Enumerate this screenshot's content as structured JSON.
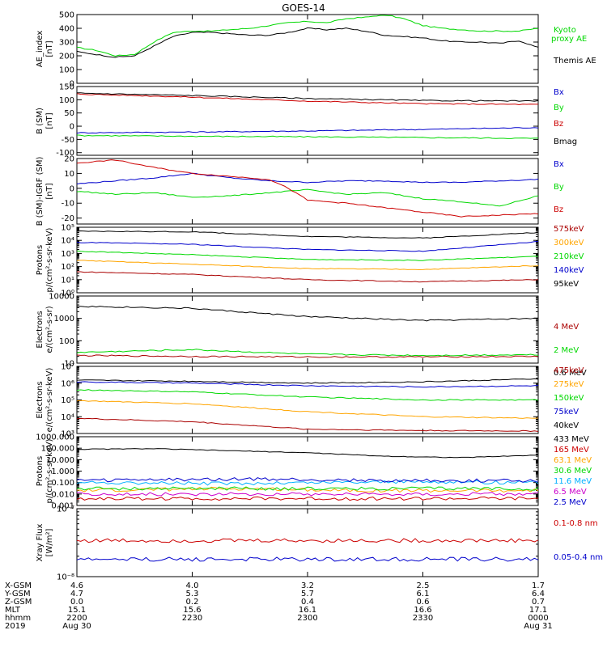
{
  "title": "GOES-14",
  "chart_data": [
    {
      "type": "line",
      "ylabel": [
        "AE_index",
        "[nT]"
      ],
      "ylim": [
        0,
        500
      ],
      "scale": "linear",
      "yticks": [
        0,
        100,
        200,
        300,
        400,
        500
      ],
      "yticklabels": [
        "0",
        "100",
        "200",
        "300",
        "400",
        "500"
      ],
      "series": [
        {
          "name": "Kyoto",
          "name2": "proxy AE",
          "color": "#00d800",
          "x": [
            0,
            5,
            10,
            15,
            20,
            25,
            30,
            35,
            40,
            45,
            50,
            55,
            60,
            65,
            70,
            75,
            80,
            85,
            90,
            95,
            100,
            105,
            110,
            115,
            120
          ],
          "values": [
            260,
            240,
            200,
            210,
            300,
            370,
            380,
            380,
            390,
            400,
            420,
            440,
            450,
            440,
            470,
            480,
            500,
            470,
            420,
            400,
            390,
            380,
            380,
            380,
            400
          ]
        },
        {
          "name": "Themis AE",
          "color": "#000000",
          "x": [
            0,
            5,
            10,
            15,
            20,
            25,
            30,
            35,
            40,
            45,
            50,
            55,
            60,
            65,
            70,
            75,
            80,
            85,
            90,
            95,
            100,
            105,
            110,
            115,
            120
          ],
          "values": [
            230,
            210,
            190,
            200,
            270,
            340,
            370,
            370,
            360,
            350,
            350,
            370,
            400,
            390,
            400,
            380,
            350,
            340,
            330,
            310,
            300,
            300,
            290,
            310,
            260
          ]
        }
      ]
    },
    {
      "type": "line",
      "ylabel": [
        "B (SM)",
        "[nT]"
      ],
      "ylim": [
        -110,
        150
      ],
      "scale": "linear",
      "yticks": [
        -100,
        -50,
        0,
        50,
        100,
        150
      ],
      "yticklabels": [
        "-100",
        "-50",
        "0",
        "50",
        "100",
        "150"
      ],
      "series": [
        {
          "name": "Bx",
          "color": "#0000cc",
          "x": [
            0,
            30,
            60,
            90,
            120
          ],
          "values": [
            -25,
            -22,
            -18,
            -12,
            -5
          ]
        },
        {
          "name": "By",
          "color": "#00d800",
          "x": [
            0,
            30,
            60,
            90,
            120
          ],
          "values": [
            -35,
            -38,
            -40,
            -43,
            -46
          ]
        },
        {
          "name": "Bz",
          "color": "#cc0000",
          "x": [
            0,
            30,
            60,
            90,
            120
          ],
          "values": [
            122,
            110,
            95,
            85,
            82
          ]
        },
        {
          "name": "Bmag",
          "color": "#000000",
          "x": [
            0,
            30,
            60,
            90,
            120
          ],
          "values": [
            125,
            116,
            105,
            97,
            95
          ]
        }
      ]
    },
    {
      "type": "line",
      "ylabel": [
        "B (SM)-IGRF (SM)",
        "[nT]"
      ],
      "ylim": [
        -24,
        20
      ],
      "scale": "linear",
      "yticks": [
        -20,
        -10,
        0,
        10,
        20
      ],
      "yticklabels": [
        "-20",
        "-10",
        "0",
        "10",
        "20"
      ],
      "series": [
        {
          "name": "Bx",
          "color": "#0000cc",
          "x": [
            0,
            10,
            20,
            30,
            40,
            50,
            60,
            70,
            80,
            90,
            100,
            110,
            120
          ],
          "values": [
            3,
            5,
            7,
            10,
            7,
            5,
            4,
            5,
            5,
            4,
            4,
            5,
            6
          ]
        },
        {
          "name": "By",
          "color": "#00d800",
          "x": [
            0,
            10,
            20,
            30,
            40,
            50,
            60,
            70,
            80,
            90,
            100,
            110,
            120
          ],
          "values": [
            -2,
            -4,
            -3,
            -6,
            -5,
            -3,
            -1,
            -4,
            -3,
            -7,
            -9,
            -12,
            -5
          ]
        },
        {
          "name": "Bz",
          "color": "#cc0000",
          "x": [
            0,
            10,
            20,
            30,
            40,
            50,
            55,
            60,
            70,
            80,
            90,
            100,
            110,
            120
          ],
          "values": [
            17,
            19,
            14,
            10,
            8,
            6,
            0,
            -8,
            -10,
            -13,
            -16,
            -19,
            -18,
            -17
          ]
        }
      ]
    },
    {
      "type": "line",
      "ylabel": [
        "Protons",
        "p/(cm²-s-sr-keV)"
      ],
      "ylim": [
        1,
        100000
      ],
      "scale": "log",
      "yticks": [
        1,
        10,
        100,
        1000,
        10000,
        100000
      ],
      "yticklabels": [
        "10⁰",
        "10¹",
        "10²",
        "10³",
        "10⁴",
        "10⁵"
      ],
      "series": [
        {
          "name": "575keV",
          "color": "#aa0000",
          "x": [
            0,
            30,
            60,
            90,
            120
          ],
          "values": [
            40,
            25,
            10,
            7,
            10
          ]
        },
        {
          "name": "300keV",
          "color": "#ffa500",
          "x": [
            0,
            30,
            60,
            90,
            120
          ],
          "values": [
            300,
            150,
            70,
            60,
            120
          ]
        },
        {
          "name": "210keV",
          "color": "#00d800",
          "x": [
            0,
            30,
            60,
            90,
            120
          ],
          "values": [
            1500,
            800,
            350,
            300,
            600
          ]
        },
        {
          "name": "140keV",
          "color": "#0000cc",
          "x": [
            0,
            30,
            60,
            90,
            120
          ],
          "values": [
            7000,
            5000,
            2000,
            1500,
            8000
          ]
        },
        {
          "name": "95keV",
          "color": "#000000",
          "x": [
            0,
            30,
            60,
            90,
            120
          ],
          "values": [
            50000,
            45000,
            20000,
            15000,
            40000
          ]
        }
      ]
    },
    {
      "type": "line",
      "ylabel": [
        "Electrons",
        "e/(cm²-s-sr)"
      ],
      "ylim": [
        10,
        10000
      ],
      "scale": "log",
      "yticks": [
        10,
        100,
        1000,
        10000
      ],
      "yticklabels": [
        "10",
        "100",
        "1000",
        "10000"
      ],
      "series": [
        {
          "name": "4 MeV",
          "color": "#aa0000",
          "x": [
            0,
            30,
            60,
            90,
            120
          ],
          "values": [
            22,
            20,
            19,
            19,
            20
          ]
        },
        {
          "name": "2 MeV",
          "color": "#00d800",
          "x": [
            0,
            30,
            60,
            90,
            120
          ],
          "values": [
            30,
            40,
            25,
            22,
            24
          ]
        },
        {
          "name": "0.6 MeV",
          "color": "#000000",
          "x": [
            0,
            30,
            60,
            90,
            120
          ],
          "values": [
            3500,
            2800,
            1200,
            800,
            1000
          ]
        }
      ]
    },
    {
      "type": "line",
      "ylabel": [
        "Electrons",
        "e/(cm²-s-sr-keV)"
      ],
      "ylim": [
        1000,
        10000000
      ],
      "scale": "log",
      "yticks": [
        1000,
        10000,
        100000,
        1000000,
        10000000
      ],
      "yticklabels": [
        "10³",
        "10⁴",
        "10⁵",
        "10⁶",
        "10⁷"
      ],
      "series": [
        {
          "name": "475keV",
          "color": "#aa0000",
          "x": [
            0,
            30,
            60,
            90,
            120
          ],
          "values": [
            8000,
            5000,
            1800,
            1500,
            1400
          ]
        },
        {
          "name": "275keV",
          "color": "#ffa500",
          "x": [
            0,
            30,
            60,
            90,
            120
          ],
          "values": [
            90000,
            60000,
            20000,
            10000,
            8000
          ]
        },
        {
          "name": "150keV",
          "color": "#00d800",
          "x": [
            0,
            30,
            60,
            90,
            120
          ],
          "values": [
            400000,
            300000,
            150000,
            100000,
            100000
          ]
        },
        {
          "name": "75keV",
          "color": "#0000cc",
          "x": [
            0,
            30,
            60,
            90,
            120
          ],
          "values": [
            1200000,
            1000000,
            700000,
            600000,
            700000
          ]
        },
        {
          "name": "40keV",
          "color": "#000000",
          "x": [
            0,
            30,
            60,
            90,
            120
          ],
          "values": [
            1500000,
            1300000,
            1000000,
            1200000,
            1800000
          ]
        }
      ]
    },
    {
      "type": "line",
      "ylabel": [
        "Protons",
        "p/(cm²-s-sr-keV)"
      ],
      "ylim": [
        0.001,
        1000
      ],
      "scale": "log",
      "yticks": [
        0.001,
        0.01,
        0.1,
        1,
        10,
        100,
        1000
      ],
      "yticklabels": [
        "0.001",
        "0.010",
        "0.100",
        "1.000",
        "10.000",
        "100.000",
        "1000.000"
      ],
      "series": [
        {
          "name": "433 MeV",
          "color": "#000000",
          "x": [
            0,
            20,
            40,
            60,
            80,
            100,
            120
          ],
          "values": [
            80,
            90,
            60,
            40,
            20,
            15,
            25
          ]
        },
        {
          "name": "165 MeV",
          "color": "#cc0000",
          "x": [
            0,
            40,
            80,
            120
          ],
          "values": [
            0.004,
            0.004,
            0.004,
            0.004
          ]
        },
        {
          "name": "63.1 MeV",
          "color": "#ffa500",
          "x": [
            0,
            40,
            80,
            120
          ],
          "values": [
            0.02,
            0.03,
            0.02,
            0.02
          ]
        },
        {
          "name": "30.6 MeV",
          "color": "#00d800",
          "x": [
            0,
            40,
            80,
            120
          ],
          "values": [
            0.03,
            0.03,
            0.03,
            0.03
          ]
        },
        {
          "name": "11.6 MeV",
          "color": "#00b0ff",
          "x": [
            0,
            40,
            80,
            120
          ],
          "values": [
            0.1,
            0.08,
            0.12,
            0.1
          ]
        },
        {
          "name": "6.5 MeV",
          "color": "#cc00cc",
          "x": [
            0,
            40,
            80,
            120
          ],
          "values": [
            0.01,
            0.01,
            0.01,
            0.01
          ]
        },
        {
          "name": "2.5 MeV",
          "color": "#0000cc",
          "x": [
            0,
            40,
            80,
            120
          ],
          "values": [
            0.15,
            0.2,
            0.15,
            0.15
          ]
        }
      ]
    },
    {
      "type": "line",
      "ylabel": [
        "Xray Flux",
        "[W/m²]"
      ],
      "ylim": [
        1e-08,
        1e-07
      ],
      "scale": "log",
      "yticks": [
        1e-08,
        1e-07
      ],
      "yticklabels": [
        "10⁻⁸",
        "10⁻⁷"
      ],
      "series": [
        {
          "name": "0.1-0.8 nm",
          "color": "#cc0000",
          "x": [
            0,
            30,
            60,
            90,
            120
          ],
          "values": 3.4e-08
        },
        {
          "name": "0.05-0.4 nm",
          "color": "#0000cc",
          "x": [
            0,
            30,
            60,
            90,
            120
          ],
          "values": 1.8e-08
        }
      ]
    }
  ],
  "xaxis": {
    "range": [
      0,
      120
    ],
    "ticks": [
      0,
      30,
      60,
      90,
      120
    ],
    "rows": [
      {
        "label": "X-GSM",
        "values": [
          "4.6",
          "4.0",
          "3.2",
          "2.5",
          "1.7"
        ]
      },
      {
        "label": "Y-GSM",
        "values": [
          "4.7",
          "5.3",
          "5.7",
          "6.1",
          "6.4"
        ]
      },
      {
        "label": "Z-GSM",
        "values": [
          "0.0",
          "0.2",
          "0.4",
          "0.6",
          "0.7"
        ]
      },
      {
        "label": "MLT",
        "values": [
          "15.1",
          "15.6",
          "16.1",
          "16.6",
          "17.1"
        ]
      },
      {
        "label": "hhmm",
        "values": [
          "2200",
          "2230",
          "2300",
          "2330",
          "0000"
        ]
      },
      {
        "label": "2019",
        "values": [
          "Aug 30",
          "",
          "",
          "",
          "Aug 31"
        ]
      }
    ]
  }
}
